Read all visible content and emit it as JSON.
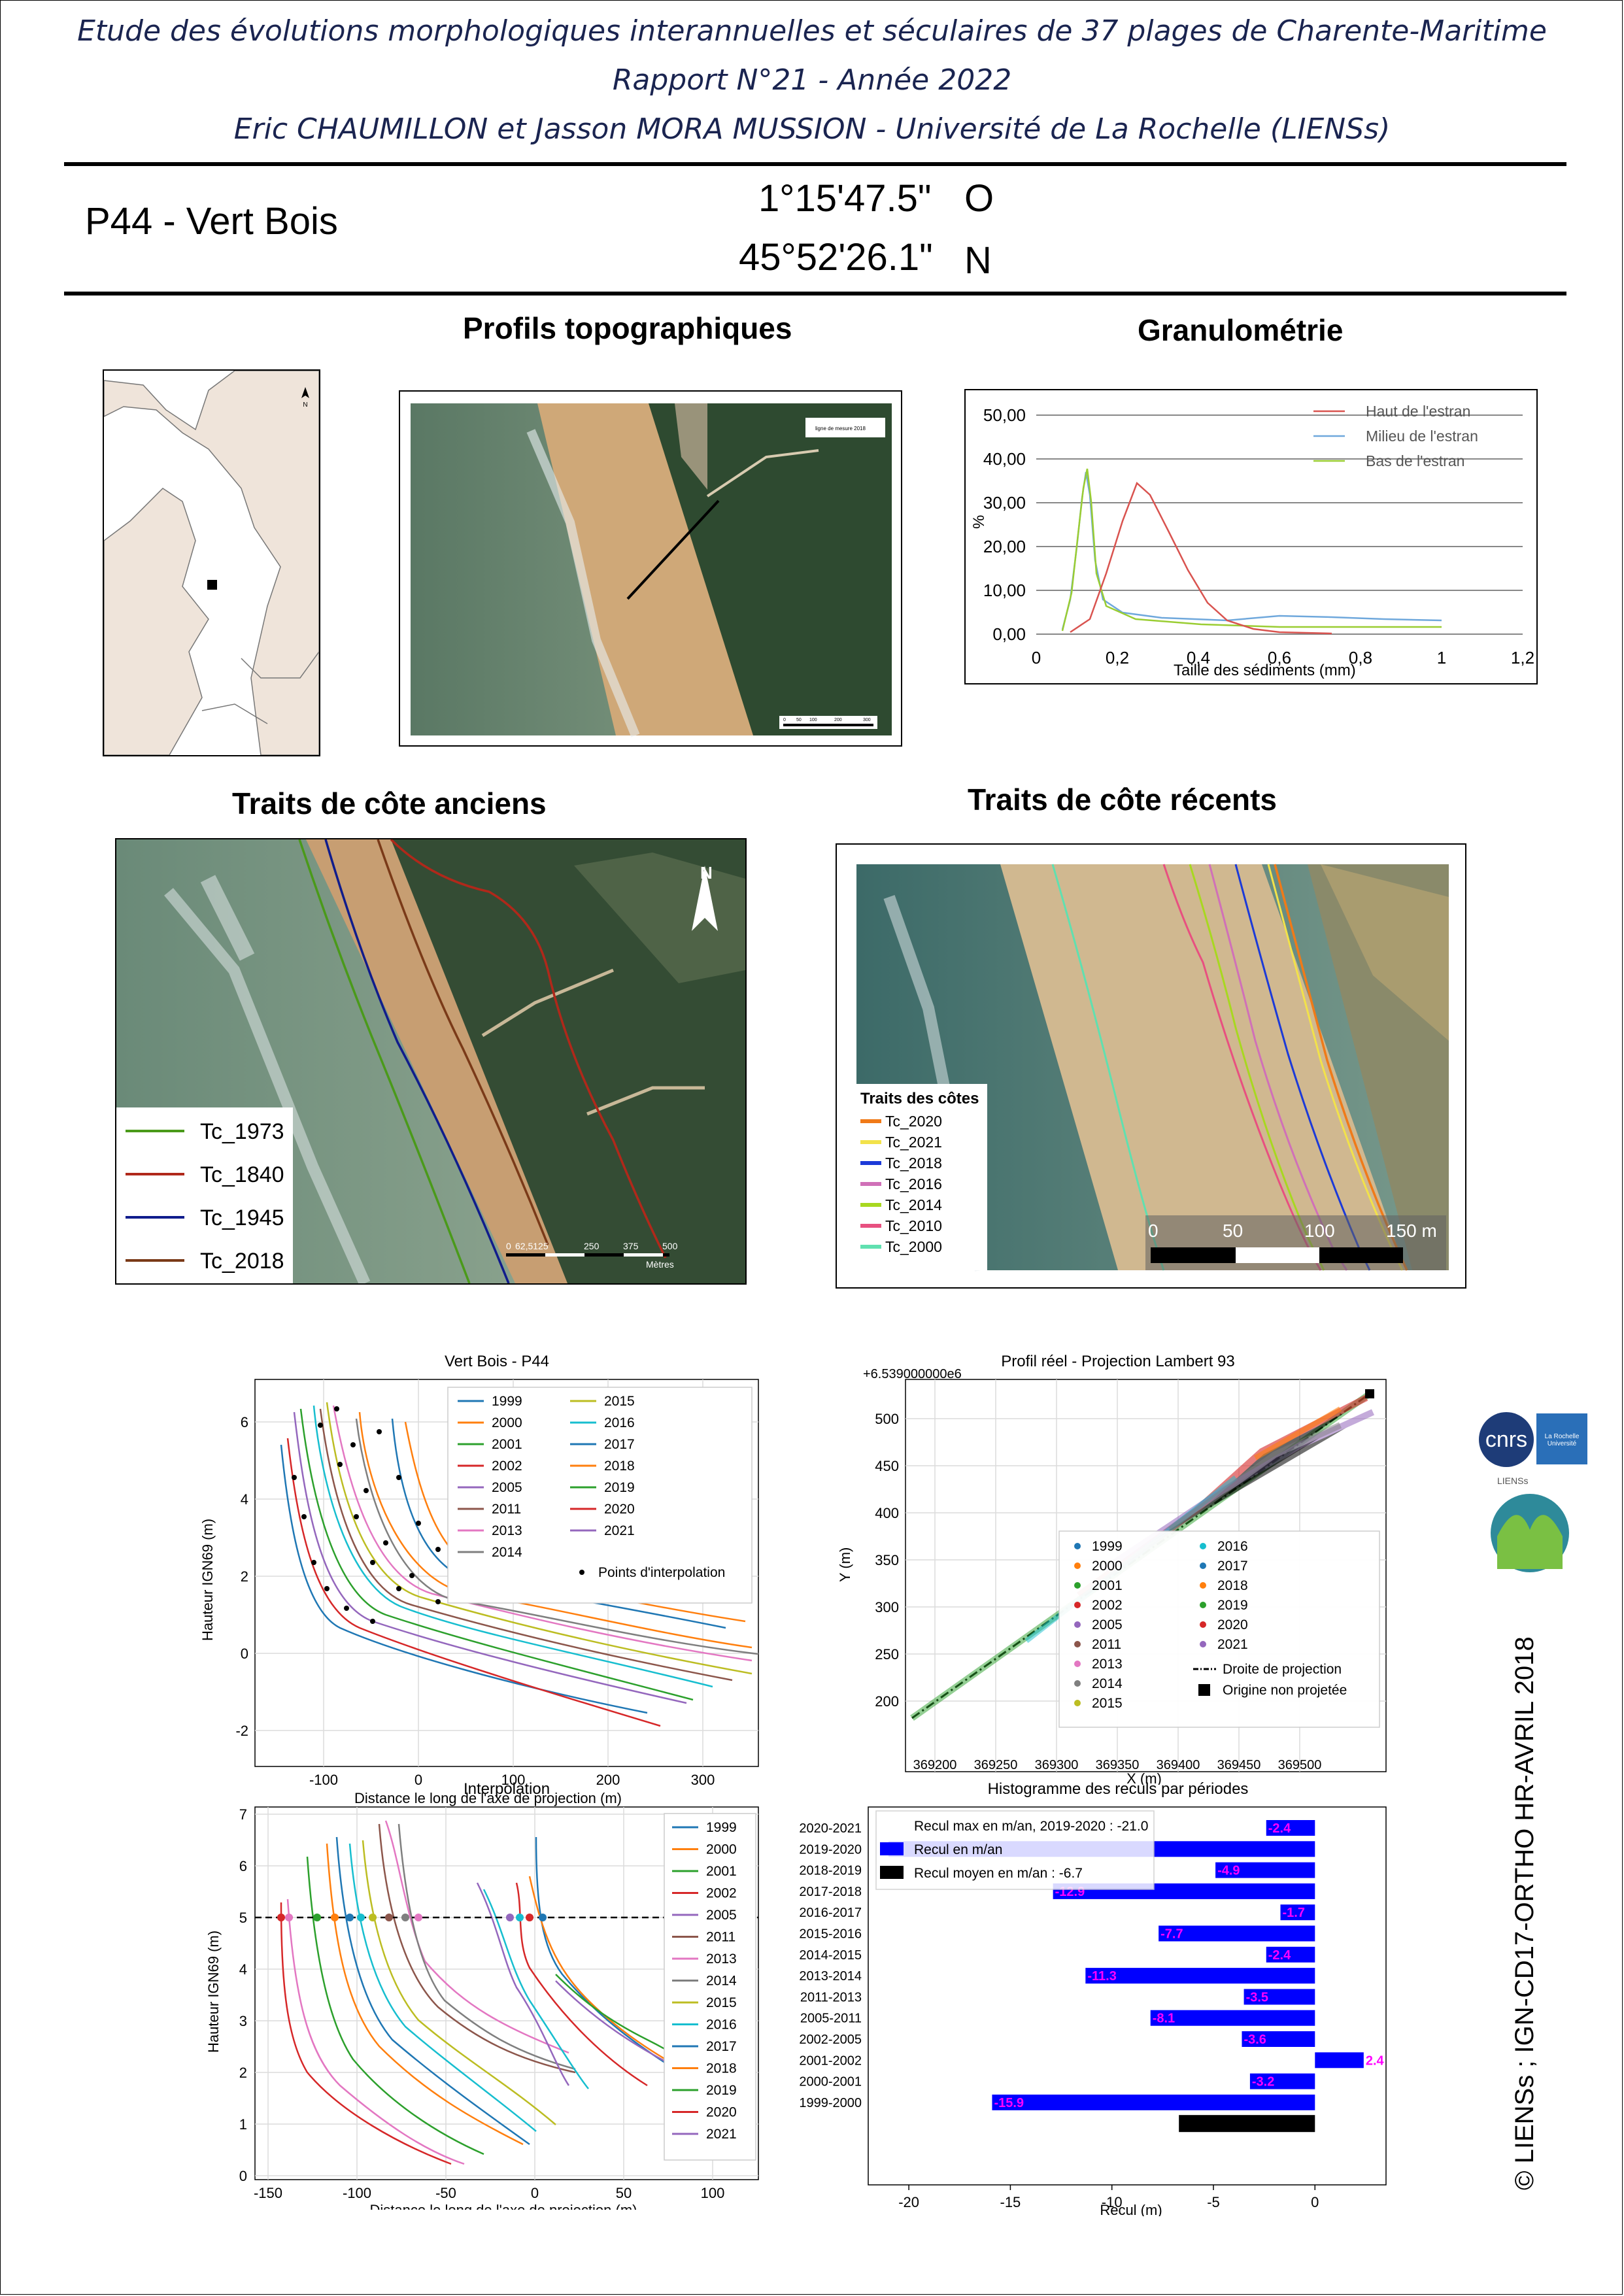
{
  "header": {
    "line1": "Etude des évolutions morphologiques interannuelles et séculaires de 37 plages de Charente-Maritime",
    "line2": "Rapport N°21 - Année 2022",
    "line3": "Eric CHAUMILLON et Jasson MORA MUSSION - Université de La Rochelle (LIENSs)"
  },
  "site": {
    "name": "P44 -  Vert Bois",
    "lon": "1°15'47.5\"",
    "lon_dir": "O",
    "lat": "45°52'26.1\"",
    "lat_dir": "N"
  },
  "sections": {
    "profils": "Profils topographiques",
    "granulo": "Granulométrie",
    "anciens": "Traits de côte anciens",
    "recents": "Traits de côte récents"
  },
  "map_small": {
    "north": "N"
  },
  "photo_profils": {
    "legend": "ligne de mesure 2018",
    "scale": [
      "0",
      "50",
      "100",
      "200",
      "300"
    ]
  },
  "granulo_chart": {
    "ylabel": "%",
    "xlabel": "Taille des sédiments (mm)",
    "yticks": [
      "50,00",
      "40,00",
      "30,00",
      "20,00",
      "10,00",
      "0,00"
    ],
    "xticks": [
      "0",
      "0,2",
      "0,4",
      "0,6",
      "0,8",
      "1",
      "1,2"
    ],
    "legend": [
      {
        "name": "Haut de l'estran",
        "color": "#d9534f"
      },
      {
        "name": "Milieu de l'estran",
        "color": "#6fa8dc"
      },
      {
        "name": "Bas de l'estran",
        "color": "#9acd32"
      }
    ]
  },
  "anciens": {
    "north": "N",
    "legend": [
      {
        "name": "Tc_1973",
        "color": "#4a9a1a"
      },
      {
        "name": "Tc_1840",
        "color": "#b0281a"
      },
      {
        "name": "Tc_1945",
        "color": "#101c8c"
      },
      {
        "name": "Tc_2018",
        "color": "#7a3a18"
      }
    ],
    "scale": [
      "0",
      "62,5125",
      "250",
      "375",
      "500"
    ],
    "scale_unit": "Mètres"
  },
  "recents": {
    "legend_title": "Traits des côtes",
    "legend": [
      {
        "name": "Tc_2020",
        "color": "#f07a18"
      },
      {
        "name": "Tc_2021",
        "color": "#f2e24a"
      },
      {
        "name": "Tc_2018",
        "color": "#1c3ad8"
      },
      {
        "name": "Tc_2016",
        "color": "#d070b8"
      },
      {
        "name": "Tc_2014",
        "color": "#a8d820"
      },
      {
        "name": "Tc_2010",
        "color": "#e85080"
      },
      {
        "name": "Tc_2000",
        "color": "#60e0b0"
      }
    ],
    "scale": [
      "0",
      "50",
      "100",
      "150 m"
    ]
  },
  "chart_profil": {
    "title": "Vert Bois - P44",
    "xlabel": "Distance le long de l'axe de projection (m)",
    "ylabel": "Hauteur IGN69 (m)",
    "xticks": [
      "-100",
      "0",
      "100",
      "200",
      "300"
    ],
    "yticks": [
      "-2",
      "0",
      "2",
      "4",
      "6"
    ],
    "legend_col1": [
      "1999",
      "2000",
      "2001",
      "2002",
      "2005",
      "2011",
      "2013",
      "2014"
    ],
    "legend_col2": [
      "2015",
      "2016",
      "2017",
      "2018",
      "2019",
      "2020",
      "2021"
    ],
    "points_label": "Points d'interpolation"
  },
  "chart_lambert": {
    "title": "Profil réel - Projection Lambert 93",
    "offset": "+6.539000000e6",
    "xlabel": "X (m)",
    "ylabel": "Y (m)",
    "xticks": [
      "369200",
      "369250",
      "369300",
      "369350",
      "369400",
      "369450",
      "369500"
    ],
    "yticks": [
      "200",
      "250",
      "300",
      "350",
      "400",
      "450",
      "500"
    ],
    "legend_col1": [
      "1999",
      "2000",
      "2001",
      "2002",
      "2005",
      "2011",
      "2013",
      "2014",
      "2015"
    ],
    "legend_col2": [
      "2016",
      "2017",
      "2018",
      "2019",
      "2020",
      "2021"
    ],
    "droite": "Droite de projection",
    "origine": "Origine non projetée"
  },
  "chart_interp": {
    "title": "Interpolation",
    "xlabel": "Distance le long de l'axe de projection (m)",
    "ylabel": "Hauteur IGN69 (m)",
    "xticks": [
      "-150",
      "-100",
      "-50",
      "0",
      "50",
      "100"
    ],
    "yticks": [
      "0",
      "1",
      "2",
      "3",
      "4",
      "5",
      "6",
      "7"
    ],
    "legend": [
      "1999",
      "2000",
      "2001",
      "2002",
      "2005",
      "2011",
      "2013",
      "2014",
      "2015",
      "2016",
      "2017",
      "2018",
      "2019",
      "2020",
      "2021"
    ]
  },
  "chart_data": {
    "type": "bar",
    "title": "Histogramme des reculs par périodes",
    "xlabel": "Recul (m)",
    "orientation": "horizontal",
    "xlim": [
      -22,
      3.5
    ],
    "xticks": [
      "-20",
      "-15",
      "-10",
      "-5",
      "0"
    ],
    "categories": [
      "2020-2021",
      "2019-2020",
      "2018-2019",
      "2017-2018",
      "2016-2017",
      "2015-2016",
      "2014-2015",
      "2013-2014",
      "2011-2013",
      "2005-2011",
      "2002-2005",
      "2001-2002",
      "2000-2001",
      "1999-2000"
    ],
    "values": [
      -2.4,
      -21.0,
      -4.9,
      -12.9,
      -1.7,
      -7.7,
      -2.4,
      -11.3,
      -3.5,
      -8.1,
      -3.6,
      2.4,
      -3.2,
      -15.9
    ],
    "labels": [
      "-2.4",
      "",
      "-4.9",
      "-12.9",
      "-1.7",
      "-7.7",
      "-2.4",
      "-11.3",
      "-3.5",
      "-8.1",
      "-3.6",
      "2.4",
      "-3.2",
      "-15.9"
    ],
    "mean": -6.7,
    "legend": [
      "Recul max en m/an, 2019-2020 : -21.0",
      "Recul en m/an",
      "Recul moyen en m/an : -6.7"
    ]
  },
  "credits": "© LIENSs ; IGN-CD17-ORTHO HR-AVRIL 2018",
  "logos": {
    "cnrs": "cnrs",
    "univ": "La Rochelle Université",
    "liens": "LIENSs"
  }
}
